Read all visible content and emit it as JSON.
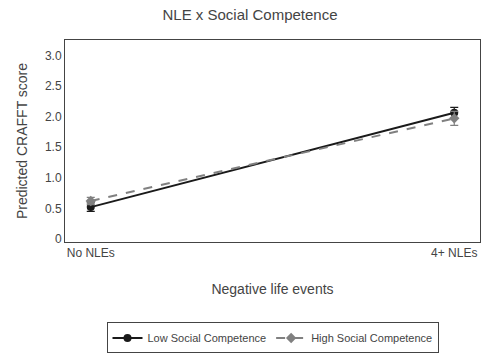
{
  "chart_data": {
    "type": "line",
    "title": "NLE x Social Competence",
    "xlabel": "Negative life events",
    "ylabel": "Predicted CRAFFT score",
    "categories": [
      "No NLEs",
      "4+ NLEs"
    ],
    "series": [
      {
        "name": "Low Social Competence",
        "color": "#1a1a1a",
        "marker": "circle",
        "line_style": "solid",
        "values": [
          0.52,
          2.06
        ],
        "yerr": [
          0.07,
          0.09
        ]
      },
      {
        "name": "High Social Competence",
        "color": "#808080",
        "marker": "diamond",
        "line_style": "dashed",
        "values": [
          0.62,
          1.97
        ],
        "yerr": [
          0.06,
          0.115
        ]
      }
    ],
    "ylim": [
      -0.05,
      3.25
    ],
    "yticks": [
      0,
      0.5,
      {
        "value": 1,
        "label": "1.0"
      },
      1.5,
      {
        "value": 2,
        "label": "2.0"
      },
      2.5,
      {
        "value": 3,
        "label": "3.0"
      }
    ],
    "grid": false,
    "legend": "bottom"
  }
}
